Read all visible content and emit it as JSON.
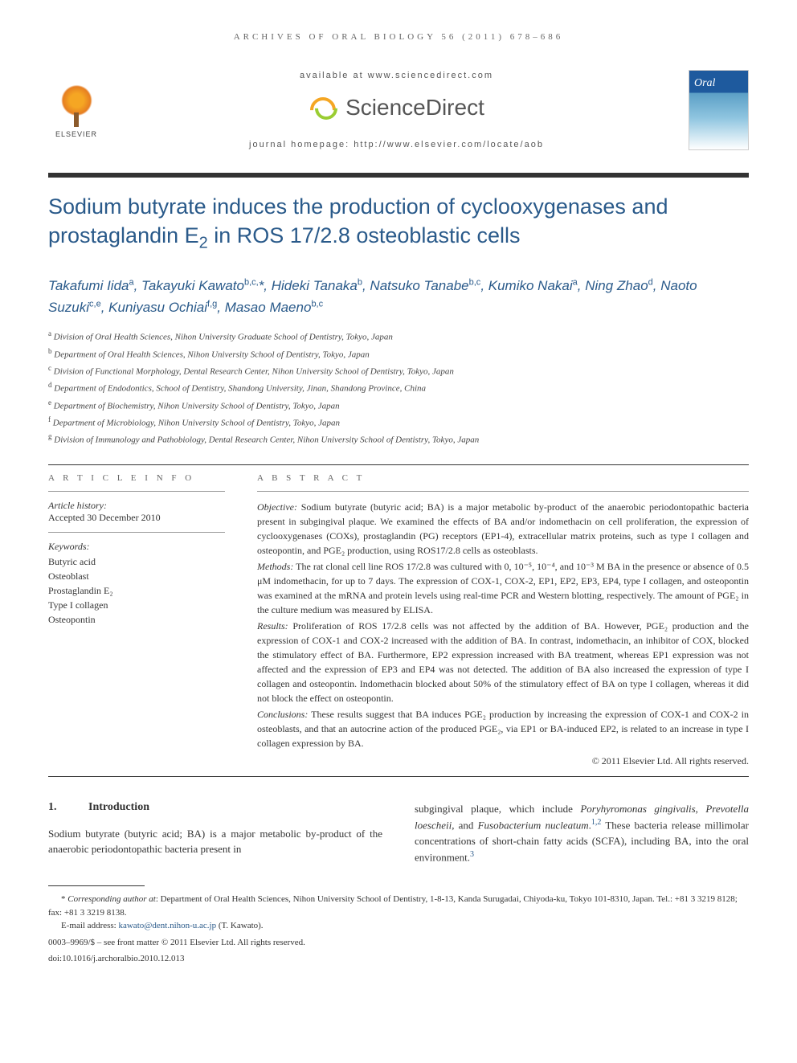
{
  "journal_ref": "ARCHIVES OF ORAL BIOLOGY 56 (2011) 678–686",
  "header": {
    "available_at": "available at www.sciencedirect.com",
    "sciencedirect": "ScienceDirect",
    "homepage": "journal homepage: http://www.elsevier.com/locate/aob",
    "elsevier_label": "ELSEVIER",
    "cover_title": "Oral"
  },
  "title_parts": {
    "pre": "Sodium butyrate induces the production of cyclooxygenases and prostaglandin E",
    "sub": "2",
    "post": " in ROS 17/2.8 osteoblastic cells"
  },
  "authors_html": "Takafumi Iida<sup>a</sup>, Takayuki Kawato<sup>b,c,</sup>*, Hideki Tanaka<sup>b</sup>, Natsuko Tanabe<sup>b,c</sup>, Kumiko Nakai<sup>a</sup>, Ning Zhao<sup>d</sup>, Naoto Suzuki<sup>c,e</sup>, Kuniyasu Ochiai<sup>f,g</sup>, Masao Maeno<sup>b,c</sup>",
  "affiliations": [
    {
      "sup": "a",
      "text": "Division of Oral Health Sciences, Nihon University Graduate School of Dentistry, Tokyo, Japan"
    },
    {
      "sup": "b",
      "text": "Department of Oral Health Sciences, Nihon University School of Dentistry, Tokyo, Japan"
    },
    {
      "sup": "c",
      "text": "Division of Functional Morphology, Dental Research Center, Nihon University School of Dentistry, Tokyo, Japan"
    },
    {
      "sup": "d",
      "text": "Department of Endodontics, School of Dentistry, Shandong University, Jinan, Shandong Province, China"
    },
    {
      "sup": "e",
      "text": "Department of Biochemistry, Nihon University School of Dentistry, Tokyo, Japan"
    },
    {
      "sup": "f",
      "text": "Department of Microbiology, Nihon University School of Dentistry, Tokyo, Japan"
    },
    {
      "sup": "g",
      "text": "Division of Immunology and Pathobiology, Dental Research Center, Nihon University School of Dentistry, Tokyo, Japan"
    }
  ],
  "article_info": {
    "label": "A R T I C L E   I N F O",
    "history_label": "Article history:",
    "history_value": "Accepted 30 December 2010",
    "keywords_label": "Keywords:",
    "keywords": [
      "Butyric acid",
      "Osteoblast",
      "Prostaglandin E₂",
      "Type I collagen",
      "Osteopontin"
    ]
  },
  "abstract": {
    "label": "A B S T R A C T",
    "objective_label": "Objective:",
    "objective": "Sodium butyrate (butyric acid; BA) is a major metabolic by-product of the anaerobic periodontopathic bacteria present in subgingival plaque. We examined the effects of BA and/or indomethacin on cell proliferation, the expression of cyclooxygenases (COXs), prostaglandin (PG) receptors (EP1-4), extracellular matrix proteins, such as type I collagen and osteopontin, and PGE₂ production, using ROS17/2.8 cells as osteoblasts.",
    "methods_label": "Methods:",
    "methods": "The rat clonal cell line ROS 17/2.8 was cultured with 0, 10⁻⁵, 10⁻⁴, and 10⁻³ M BA in the presence or absence of 0.5 μM indomethacin, for up to 7 days. The expression of COX-1, COX-2, EP1, EP2, EP3, EP4, type I collagen, and osteopontin was examined at the mRNA and protein levels using real-time PCR and Western blotting, respectively. The amount of PGE₂ in the culture medium was measured by ELISA.",
    "results_label": "Results:",
    "results": "Proliferation of ROS 17/2.8 cells was not affected by the addition of BA. However, PGE₂ production and the expression of COX-1 and COX-2 increased with the addition of BA. In contrast, indomethacin, an inhibitor of COX, blocked the stimulatory effect of BA. Furthermore, EP2 expression increased with BA treatment, whereas EP1 expression was not affected and the expression of EP3 and EP4 was not detected. The addition of BA also increased the expression of type I collagen and osteopontin. Indomethacin blocked about 50% of the stimulatory effect of BA on type I collagen, whereas it did not block the effect on osteopontin.",
    "conclusions_label": "Conclusions:",
    "conclusions": "These results suggest that BA induces PGE₂ production by increasing the expression of COX-1 and COX-2 in osteoblasts, and that an autocrine action of the produced PGE₂, via EP1 or BA-induced EP2, is related to an increase in type I collagen expression by BA.",
    "copyright": "© 2011 Elsevier Ltd. All rights reserved."
  },
  "intro": {
    "num": "1.",
    "heading": "Introduction",
    "col1": "Sodium butyrate (butyric acid; BA) is a major metabolic by-product of the anaerobic periodontopathic bacteria present in",
    "col2_pre": "subgingival plaque, which include ",
    "species1": "Poryhyromonas gingivalis",
    "species2": "Prevotella loescheii",
    "species3": "Fusobacterium nucleatum",
    "ref12": "1,2",
    "col2_post": " These bacteria release millimolar concentrations of short-chain fatty acids (SCFA), including BA, into the oral environment.",
    "ref3": "3"
  },
  "footnote": {
    "corr_label": "Corresponding author at",
    "corr_text": ": Department of Oral Health Sciences, Nihon University School of Dentistry, 1-8-13, Kanda Surugadai, Chiyoda-ku, Tokyo 101-8310, Japan. Tel.: +81 3 3219 8128; fax: +81 3 3219 8138.",
    "email_label": "E-mail address: ",
    "email": "kawato@dent.nihon-u.ac.jp",
    "email_suffix": " (T. Kawato).",
    "issn": "0003–9969/$ – see front matter © 2011 Elsevier Ltd. All rights reserved.",
    "doi": "doi:10.1016/j.archoralbio.2010.12.013"
  },
  "colors": {
    "title_color": "#2a5a8a",
    "link_color": "#2a5a8a",
    "text_color": "#333333",
    "label_color": "#666666"
  }
}
